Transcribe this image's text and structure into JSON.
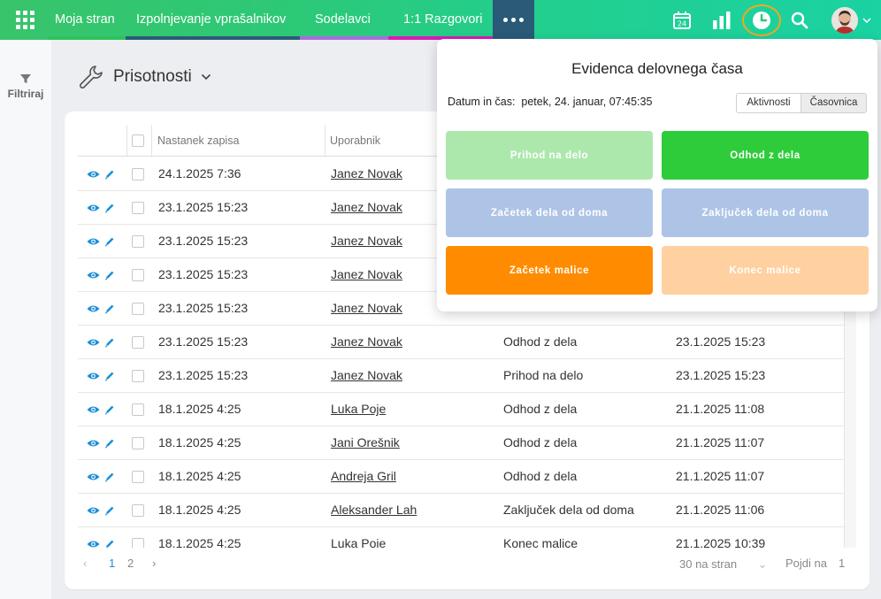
{
  "nav": {
    "items": [
      "Moja stran",
      "Izpolnjevanje vprašalnikov",
      "Sodelavci",
      "1:1 Razgovori"
    ],
    "underline_colors": [
      "#2cc15c",
      "#2a5a78",
      "#a86be0",
      "#d81ab8"
    ],
    "calendar_day": "24"
  },
  "sidebar": {
    "filter_label": "Filtriraj"
  },
  "page": {
    "title": "Prisotnosti"
  },
  "table": {
    "columns": [
      "Nastanek zapisa",
      "Uporabnik",
      "",
      ""
    ],
    "rows": [
      {
        "created": "24.1.2025 7:36",
        "user": "Janez Novak",
        "action": "",
        "time": ""
      },
      {
        "created": "23.1.2025 15:23",
        "user": "Janez Novak",
        "action": "",
        "time": ""
      },
      {
        "created": "23.1.2025 15:23",
        "user": "Janez Novak",
        "action": "",
        "time": ""
      },
      {
        "created": "23.1.2025 15:23",
        "user": "Janez Novak",
        "action": "",
        "time": ""
      },
      {
        "created": "23.1.2025 15:23",
        "user": "Janez Novak",
        "action": "",
        "time": ""
      },
      {
        "created": "23.1.2025 15:23",
        "user": "Janez Novak",
        "action": "Odhod z dela",
        "time": "23.1.2025 15:23"
      },
      {
        "created": "23.1.2025 15:23",
        "user": "Janez Novak",
        "action": "Prihod na delo",
        "time": "23.1.2025 15:23"
      },
      {
        "created": "18.1.2025 4:25",
        "user": "Luka Poje",
        "action": "Odhod z dela",
        "time": "21.1.2025 11:08"
      },
      {
        "created": "18.1.2025 4:25",
        "user": "Jani Orešnik",
        "action": "Odhod z dela",
        "time": "21.1.2025 11:07"
      },
      {
        "created": "18.1.2025 4:25",
        "user": "Andreja Gril",
        "action": "Odhod z dela",
        "time": "21.1.2025 11:07"
      },
      {
        "created": "18.1.2025 4:25",
        "user": "Aleksander Lah",
        "action": "Zaključek dela od doma",
        "time": "21.1.2025 11:06"
      },
      {
        "created": "18.1.2025 4:25",
        "user": "Luka Poje",
        "action": "Konec malice",
        "time": "21.1.2025 10:39"
      }
    ]
  },
  "pagination": {
    "pages": [
      "1",
      "2"
    ],
    "per_page": "30 na stran",
    "goto_label": "Pojdi na",
    "goto_value": "1"
  },
  "popup": {
    "title": "Evidenca delovnega časa",
    "date_label": "Datum in čas:",
    "date_value": "petek, 24. januar, 07:45:35",
    "tabs": [
      "Aktivnosti",
      "Časovnica"
    ],
    "buttons": [
      {
        "label": "Prihod na delo",
        "color": "#ace8ac"
      },
      {
        "label": "Odhod z dela",
        "color": "#2ecc3a"
      },
      {
        "label": "Začetek dela od doma",
        "color": "#aec4e6"
      },
      {
        "label": "Zaključek dela od doma",
        "color": "#aec4e6"
      },
      {
        "label": "Začetek malice",
        "color": "#ff8c00"
      },
      {
        "label": "Konec malice",
        "color": "#ffd0a0"
      }
    ]
  },
  "colors": {
    "accent_blue": "#1a8fd6",
    "highlight_ring": "#f5a623"
  }
}
